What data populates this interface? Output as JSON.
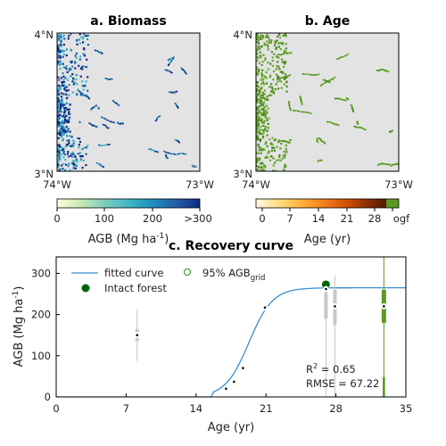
{
  "panels": {
    "biomass": {
      "title": "a. Biomass",
      "lat_top": "4°N",
      "lat_bottom": "3°N",
      "lon_left": "74°W",
      "lon_right": "73°W"
    },
    "age": {
      "title": "b. Age",
      "lat_top": "4°N",
      "lat_bottom": "3°N",
      "lon_left": "74°W",
      "lon_right": "73°W"
    }
  },
  "colorbars": {
    "agb": {
      "ticks": [
        "0",
        "100",
        "200",
        ">300"
      ],
      "label_main": "AGB (Mg ha",
      "label_sup": "-1",
      "label_end": ")",
      "colors": [
        "#ffffd9",
        "#c7e9b4",
        "#7fcdbb",
        "#41b6c4",
        "#1d91c0",
        "#225ea8",
        "#0c2c84"
      ]
    },
    "age": {
      "ticks": [
        "0",
        "7",
        "14",
        "21",
        "28",
        "ogf"
      ],
      "label": "Age (yr)",
      "colors": [
        "#fff7e6",
        "#fee391",
        "#fec44f",
        "#fe9929",
        "#ec7014",
        "#cc4c02",
        "#8c2d04",
        "#4d1a02"
      ],
      "ogf_color": "#5a9a1f"
    }
  },
  "chart_data": {
    "type": "scatter",
    "title": "c. Recovery curve",
    "xlabel": "Age (yr)",
    "ylabel_main": "AGB (Mg ha",
    "ylabel_sup": "-1",
    "ylabel_end": ")",
    "xlim": [
      0,
      35
    ],
    "ylim": [
      0,
      340
    ],
    "xticks": [
      "0",
      "7",
      "14",
      "21",
      "28",
      "35"
    ],
    "yticks": [
      "0",
      "100",
      "200",
      "300"
    ],
    "legend": {
      "fitted": "fitted curve",
      "ci_main": "95% AGB",
      "ci_sub": "grid",
      "intact": "Intact forest"
    },
    "curve_color": "#3a8fd0",
    "intact_color": "#006400",
    "ogf_color": "#5a9a1f",
    "fitted_curve": {
      "asymptote": 265,
      "midpoint": 19.3,
      "rate": 0.85
    },
    "points": [
      {
        "x": 8.1,
        "y": 150,
        "box_low": 135,
        "box_high": 165,
        "whisker_low": 87,
        "whisker_high": 213
      },
      {
        "x": 17.0,
        "y": 20
      },
      {
        "x": 17.8,
        "y": 37
      },
      {
        "x": 18.7,
        "y": 70
      },
      {
        "x": 20.9,
        "y": 217
      },
      {
        "x": 27.0,
        "y": 262,
        "box_low": 190,
        "box_high": 265,
        "whisker_low": 0,
        "whisker_high": 270
      },
      {
        "x": 27.9,
        "y": 220,
        "box_low": 175,
        "box_high": 260,
        "whisker_low": 0,
        "whisker_high": 295
      }
    ],
    "intact_point": {
      "x": 27.0,
      "y": 273
    },
    "ogf_point": {
      "x": 32.8,
      "y": 220,
      "box_low": 180,
      "box_high": 260,
      "whisker_low": 0,
      "whisker_high": 340,
      "low_bar_low": 0,
      "low_bar_high": 48
    },
    "stats": {
      "r2_main": "R",
      "r2_sup": "2",
      "r2_value": " = 0.65",
      "rmse": "RMSE = 67.22"
    }
  }
}
